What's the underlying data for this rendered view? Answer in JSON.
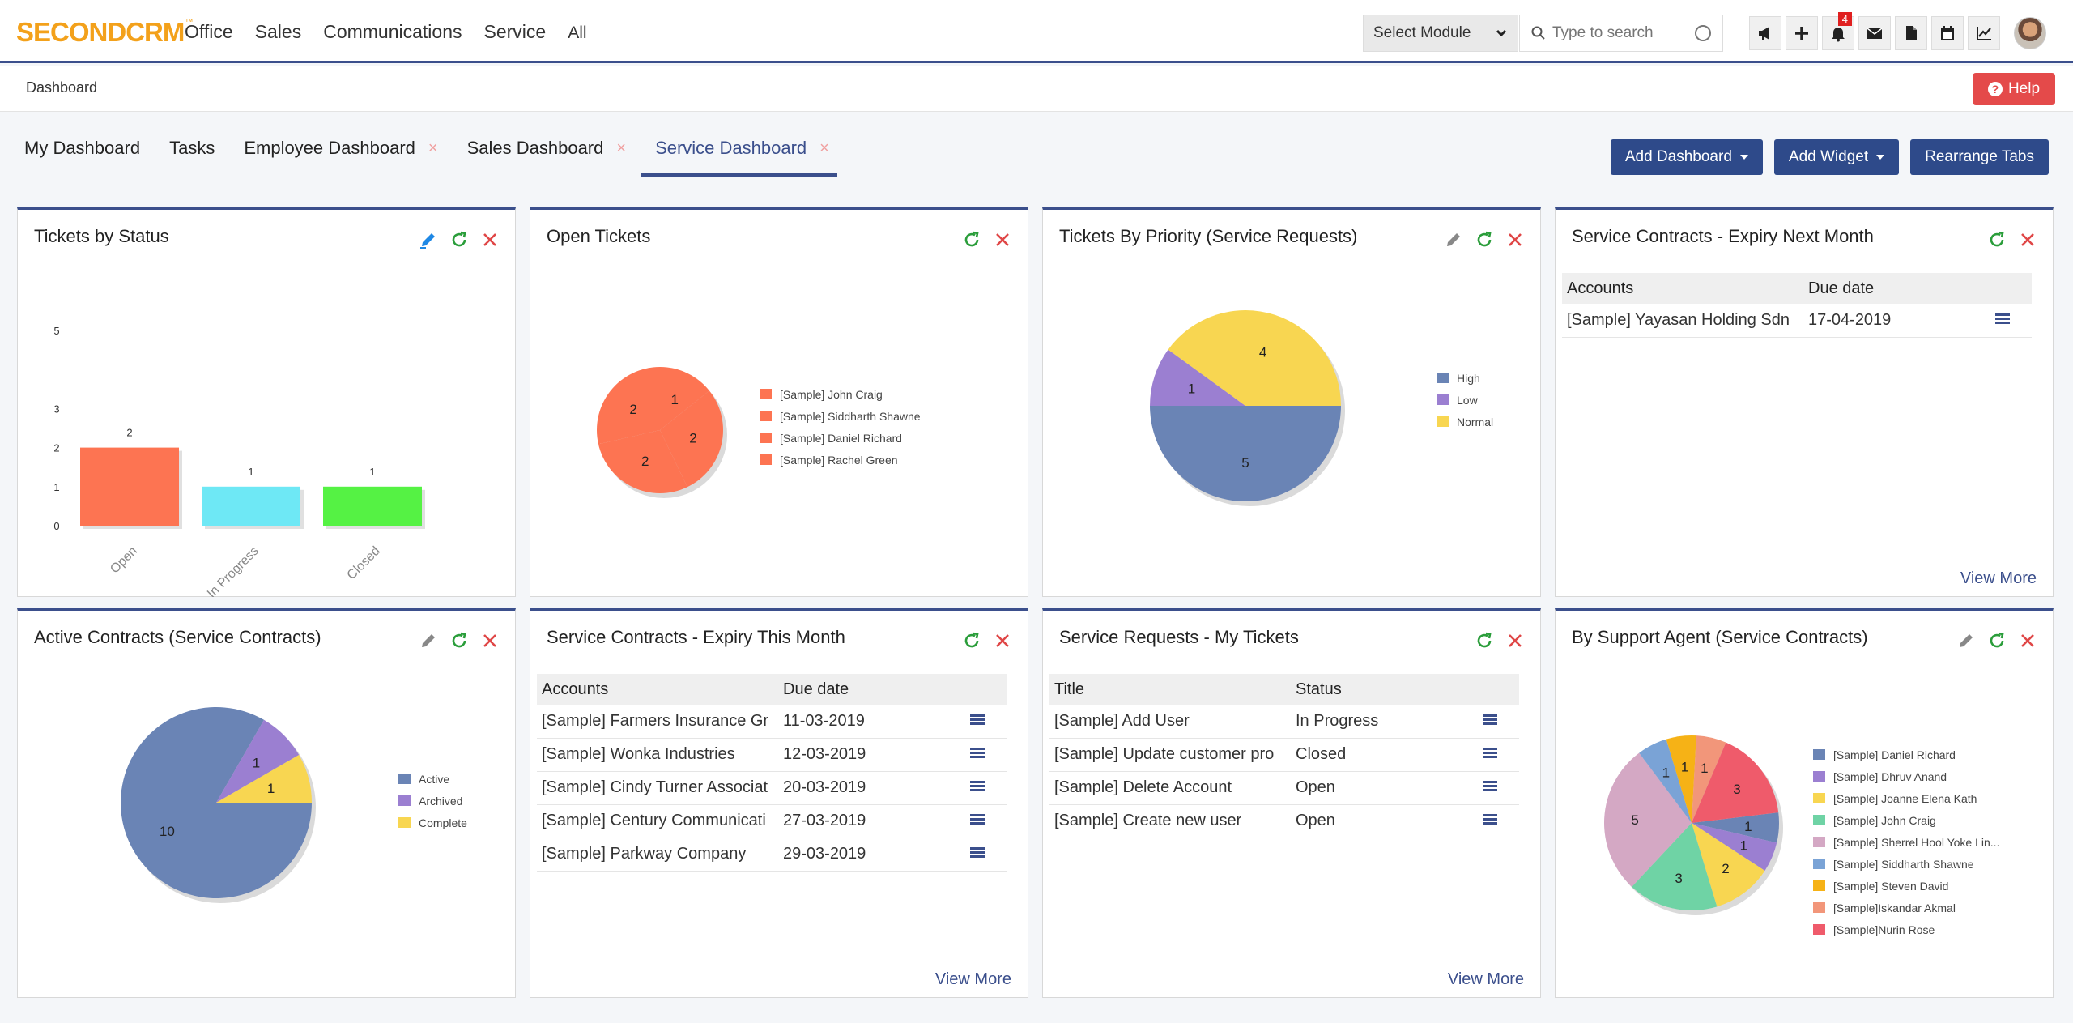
{
  "logo": {
    "part1": "SECOND",
    "part2": "CRM",
    "tm": "™"
  },
  "nav": [
    "Office",
    "Sales",
    "Communications",
    "Service"
  ],
  "nav_all": "All",
  "module_select": "Select Module",
  "search": {
    "placeholder": "Type to search"
  },
  "notifications_count": "4",
  "breadcrumb": "Dashboard",
  "help_label": "Help",
  "tabs": [
    {
      "label": "My Dashboard",
      "closable": false
    },
    {
      "label": "Tasks",
      "closable": false
    },
    {
      "label": "Employee Dashboard",
      "closable": true
    },
    {
      "label": "Sales Dashboard",
      "closable": true
    },
    {
      "label": "Service Dashboard",
      "closable": true,
      "active": true
    }
  ],
  "tab_close": "×",
  "buttons": {
    "add_dashboard": "Add Dashboard",
    "add_widget": "Add Widget",
    "rearrange": "Rearrange Tabs"
  },
  "widgets": {
    "tickets_by_status": {
      "title": "Tickets by Status"
    },
    "open_tickets": {
      "title": "Open Tickets"
    },
    "tickets_by_priority": {
      "title": "Tickets By Priority (Service Requests)"
    },
    "expiry_next_month": {
      "title": "Service Contracts - Expiry Next Month",
      "columns": [
        "Accounts",
        "Due date"
      ],
      "rows": [
        [
          "[Sample] Yayasan Holding Sdn",
          "17-04-2019"
        ]
      ],
      "view_more": "View More"
    },
    "active_contracts": {
      "title": "Active Contracts (Service Contracts)"
    },
    "expiry_this_month": {
      "title": "Service Contracts - Expiry This Month",
      "columns": [
        "Accounts",
        "Due date"
      ],
      "rows": [
        [
          "[Sample] Farmers Insurance Gr",
          "11-03-2019"
        ],
        [
          "[Sample] Wonka Industries",
          "12-03-2019"
        ],
        [
          "[Sample] Cindy Turner Associat",
          "20-03-2019"
        ],
        [
          "[Sample] Century Communicati",
          "27-03-2019"
        ],
        [
          "[Sample] Parkway Company",
          "29-03-2019"
        ]
      ],
      "view_more": "View More"
    },
    "my_tickets": {
      "title": "Service Requests - My Tickets",
      "columns": [
        "Title",
        "Status"
      ],
      "rows": [
        [
          "[Sample] Add User",
          "In Progress"
        ],
        [
          "[Sample] Update customer pro",
          "Closed"
        ],
        [
          "[Sample] Delete Account",
          "Open"
        ],
        [
          "[Sample] Create new user",
          "Open"
        ]
      ],
      "view_more": "View More"
    },
    "by_support_agent": {
      "title": "By Support Agent (Service Contracts)"
    }
  },
  "chart_data": [
    {
      "type": "bar",
      "id": "tickets_by_status",
      "categories": [
        "Open",
        "In Progress",
        "Closed"
      ],
      "values": [
        2,
        1,
        1
      ],
      "colors": [
        "#fd7452",
        "#6ee8f5",
        "#55f244"
      ],
      "ylim": [
        0,
        5
      ],
      "yticks": [
        0,
        1,
        2,
        3,
        5
      ]
    },
    {
      "type": "pie",
      "id": "open_tickets",
      "labels": [
        "[Sample] John Craig",
        "[Sample] Siddharth Shawne",
        "[Sample] Daniel Richard",
        "[Sample] Rachel Green"
      ],
      "values": [
        1,
        2,
        2,
        2
      ],
      "colors": [
        "#fd7452",
        "#fd7452",
        "#fd7452",
        "#fd7452"
      ]
    },
    {
      "type": "pie",
      "id": "tickets_by_priority",
      "labels": [
        "High",
        "Low",
        "Normal"
      ],
      "values": [
        5,
        1,
        4
      ],
      "colors": [
        "#6a84b5",
        "#9b7fd1",
        "#f8d651"
      ]
    },
    {
      "type": "pie",
      "id": "active_contracts",
      "labels": [
        "Active",
        "Archived",
        "Complete"
      ],
      "values": [
        10,
        1,
        1
      ],
      "colors": [
        "#6a84b5",
        "#9b7fd1",
        "#f8d651"
      ]
    },
    {
      "type": "pie",
      "id": "by_support_agent",
      "labels": [
        "[Sample] Daniel Richard",
        "[Sample] Dhruv Anand",
        "[Sample] Joanne Elena Kath",
        "[Sample] John Craig",
        "[Sample] Sherrel Hool Yoke Lin...",
        "[Sample] Siddharth Shawne",
        "[Sample] Steven David",
        "[Sample]Iskandar Akmal",
        "[Sample]Nurin Rose"
      ],
      "values": [
        1,
        1,
        2,
        3,
        5,
        1,
        1,
        1,
        3
      ],
      "colors": [
        "#6a84b5",
        "#9b7fd1",
        "#f8d651",
        "#6fd3a5",
        "#d4a8c4",
        "#7aa3d6",
        "#f6b216",
        "#f2967a",
        "#ef5b6b"
      ]
    }
  ]
}
